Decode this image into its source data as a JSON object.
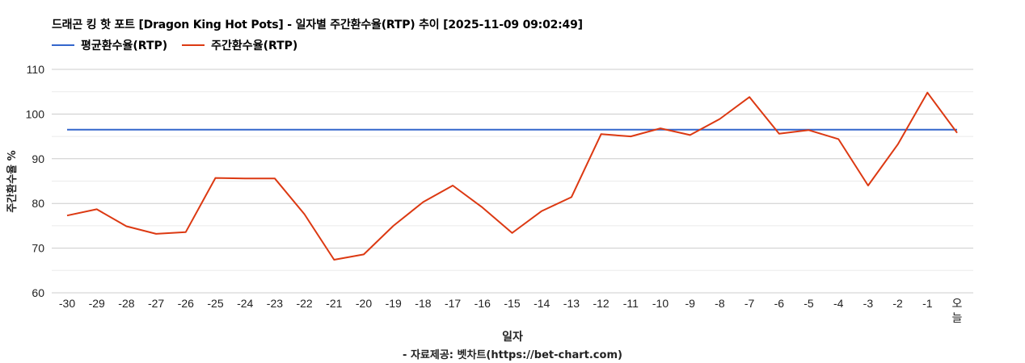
{
  "header": {
    "title": "드래곤 킹 핫 포트 [Dragon King Hot Pots] - 일자별 주간환수율(RTP) 추이 [2025-11-09 09:02:49]"
  },
  "legend": [
    {
      "label": "평균환수율(RTP)",
      "color": "#3366cc"
    },
    {
      "label": "주간환수율(RTP)",
      "color": "#dc3912"
    }
  ],
  "axes": {
    "ylabel": "주간환수율 %",
    "xlabel": "일자"
  },
  "footer": {
    "source": "- 자료제공: 벳차트(https://bet-chart.com)"
  },
  "chart_data": {
    "type": "line",
    "title": "드래곤 킹 핫 포트 [Dragon King Hot Pots] - 일자별 주간환수율(RTP) 추이 [2025-11-09 09:02:49]",
    "xlabel": "일자",
    "ylabel": "주간환수율 %",
    "ylim": [
      60,
      110
    ],
    "yticks": [
      60,
      70,
      80,
      90,
      100,
      110
    ],
    "grid": true,
    "legend_position": "top",
    "categories": [
      "-30",
      "-29",
      "-28",
      "-27",
      "-26",
      "-25",
      "-24",
      "-23",
      "-22",
      "-21",
      "-20",
      "-19",
      "-18",
      "-17",
      "-16",
      "-15",
      "-14",
      "-13",
      "-12",
      "-11",
      "-10",
      "-9",
      "-8",
      "-7",
      "-6",
      "-5",
      "-4",
      "-3",
      "-2",
      "-1",
      "오늘"
    ],
    "series": [
      {
        "name": "평균환수율(RTP)",
        "color": "#3366cc",
        "values": [
          96.5,
          96.5,
          96.5,
          96.5,
          96.5,
          96.5,
          96.5,
          96.5,
          96.5,
          96.5,
          96.5,
          96.5,
          96.5,
          96.5,
          96.5,
          96.5,
          96.5,
          96.5,
          96.5,
          96.5,
          96.5,
          96.5,
          96.5,
          96.5,
          96.5,
          96.5,
          96.5,
          96.5,
          96.5,
          96.5,
          96.5
        ]
      },
      {
        "name": "주간환수율(RTP)",
        "color": "#dc3912",
        "values": [
          77.3,
          78.7,
          74.9,
          73.2,
          73.6,
          85.7,
          85.6,
          85.6,
          77.6,
          67.4,
          68.6,
          75.0,
          80.3,
          84.0,
          79.1,
          73.4,
          78.3,
          81.4,
          95.5,
          95.0,
          96.8,
          95.3,
          98.9,
          103.8,
          95.6,
          96.4,
          94.4,
          84.0,
          93.2,
          104.8,
          95.8
        ]
      }
    ]
  }
}
